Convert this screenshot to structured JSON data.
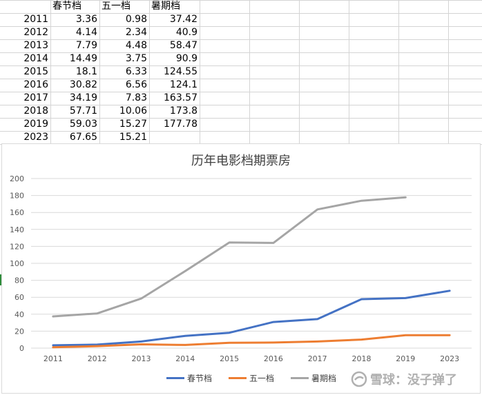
{
  "sheet": {
    "header": [
      "",
      "春节档",
      "五一档",
      "暑期档"
    ],
    "rows": [
      [
        "2011",
        "3.36",
        "0.98",
        "37.42"
      ],
      [
        "2012",
        "4.14",
        "2.34",
        "40.9"
      ],
      [
        "2013",
        "7.79",
        "4.48",
        "58.47"
      ],
      [
        "2014",
        "14.49",
        "3.75",
        "90.9"
      ],
      [
        "2015",
        "18.1",
        "6.33",
        "124.55"
      ],
      [
        "2016",
        "30.82",
        "6.56",
        "124.1"
      ],
      [
        "2017",
        "34.19",
        "7.83",
        "163.57"
      ],
      [
        "2018",
        "57.71",
        "10.06",
        "173.8"
      ],
      [
        "2019",
        "59.03",
        "15.27",
        "177.78"
      ],
      [
        "2023",
        "67.65",
        "15.21",
        ""
      ]
    ]
  },
  "chart_data": {
    "type": "line",
    "title": "历年电影档期票房",
    "categories": [
      "2011",
      "2012",
      "2013",
      "2014",
      "2015",
      "2016",
      "2017",
      "2018",
      "2019",
      "2023"
    ],
    "series": [
      {
        "name": "春节档",
        "color": "#4472C4",
        "values": [
          3.36,
          4.14,
          7.79,
          14.49,
          18.1,
          30.82,
          34.19,
          57.71,
          59.03,
          67.65
        ]
      },
      {
        "name": "五一档",
        "color": "#ED7D31",
        "values": [
          0.98,
          2.34,
          4.48,
          3.75,
          6.33,
          6.56,
          7.83,
          10.06,
          15.27,
          15.21
        ]
      },
      {
        "name": "暑期档",
        "color": "#A5A5A5",
        "values": [
          37.42,
          40.9,
          58.47,
          90.9,
          124.55,
          124.1,
          163.57,
          173.8,
          177.78,
          null
        ]
      }
    ],
    "ylim": [
      0,
      200
    ],
    "yticks": [
      "0",
      "20",
      "40",
      "60",
      "80",
      "100",
      "120",
      "140",
      "160",
      "180",
      "200"
    ],
    "grid": true,
    "legend": "bottom"
  },
  "watermark": {
    "icon": "snowball-logo-icon",
    "text": "雪球：没子弹了"
  }
}
